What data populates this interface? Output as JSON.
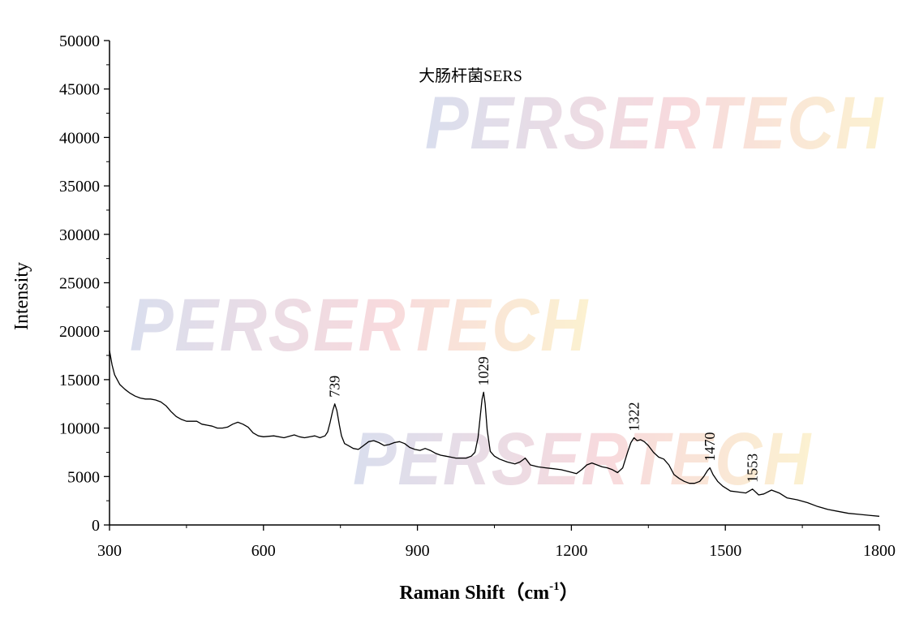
{
  "chart_data": {
    "type": "line",
    "title": "大肠杆菌SERS",
    "xlabel": "Raman Shift",
    "xlabel_unit_prefix": "（cm",
    "xlabel_unit_exp": "-1",
    "xlabel_unit_suffix": "）",
    "ylabel": "Intensity",
    "xlim": [
      300,
      1800
    ],
    "ylim": [
      0,
      50000
    ],
    "x_ticks": [
      300,
      600,
      900,
      1200,
      1500,
      1800
    ],
    "y_ticks": [
      0,
      5000,
      10000,
      15000,
      20000,
      25000,
      30000,
      35000,
      40000,
      45000,
      50000
    ],
    "grid": false,
    "line_color": "#000000",
    "series": [
      {
        "x": [
          300,
          305,
          310,
          315,
          320,
          330,
          340,
          350,
          360,
          370,
          380,
          390,
          400,
          410,
          420,
          430,
          440,
          450,
          460,
          470,
          480,
          490,
          500,
          510,
          520,
          530,
          540,
          550,
          560,
          570,
          580,
          590,
          600,
          620,
          640,
          660,
          670,
          680,
          700,
          710,
          720,
          725,
          730,
          735,
          739,
          743,
          748,
          752,
          758,
          765,
          775,
          785,
          795,
          805,
          815,
          825,
          835,
          845,
          855,
          865,
          875,
          885,
          895,
          905,
          915,
          925,
          935,
          945,
          955,
          965,
          975,
          985,
          995,
          1005,
          1012,
          1018,
          1023,
          1026,
          1029,
          1032,
          1036,
          1042,
          1050,
          1060,
          1075,
          1090,
          1100,
          1110,
          1120,
          1135,
          1150,
          1165,
          1180,
          1195,
          1210,
          1220,
          1230,
          1240,
          1250,
          1260,
          1270,
          1280,
          1290,
          1300,
          1310,
          1316,
          1322,
          1328,
          1335,
          1342,
          1350,
          1360,
          1370,
          1380,
          1390,
          1400,
          1410,
          1420,
          1430,
          1440,
          1450,
          1458,
          1465,
          1470,
          1476,
          1485,
          1495,
          1510,
          1525,
          1540,
          1553,
          1565,
          1575,
          1590,
          1605,
          1620,
          1640,
          1660,
          1680,
          1700,
          1720,
          1740,
          1760,
          1780,
          1800
        ],
        "y": [
          18000,
          16500,
          15500,
          15000,
          14500,
          14000,
          13600,
          13300,
          13100,
          13000,
          13000,
          12900,
          12700,
          12300,
          11700,
          11200,
          10900,
          10700,
          10700,
          10700,
          10400,
          10300,
          10200,
          10000,
          10000,
          10100,
          10400,
          10600,
          10400,
          10100,
          9500,
          9200,
          9100,
          9200,
          9000,
          9300,
          9100,
          9000,
          9200,
          9000,
          9200,
          9600,
          10600,
          11800,
          12500,
          11800,
          10300,
          9200,
          8400,
          8200,
          7900,
          7800,
          8200,
          8600,
          8700,
          8500,
          8200,
          8300,
          8500,
          8600,
          8400,
          8000,
          7800,
          7700,
          7900,
          7700,
          7400,
          7200,
          7100,
          7000,
          6900,
          6900,
          6900,
          7100,
          7500,
          9000,
          11500,
          13000,
          13700,
          12500,
          9800,
          7600,
          7100,
          6800,
          6500,
          6300,
          6500,
          6900,
          6200,
          6000,
          5900,
          5800,
          5700,
          5500,
          5300,
          5700,
          6200,
          6400,
          6200,
          6000,
          5900,
          5700,
          5400,
          5900,
          7600,
          8500,
          9000,
          8700,
          8800,
          8600,
          8200,
          7500,
          7000,
          6800,
          6200,
          5200,
          4800,
          4500,
          4300,
          4300,
          4500,
          5000,
          5600,
          5900,
          5200,
          4500,
          4000,
          3500,
          3400,
          3300,
          3700,
          3100,
          3200,
          3600,
          3300,
          2800,
          2600,
          2300,
          1900,
          1600,
          1400,
          1200,
          1100,
          1000,
          900
        ]
      }
    ],
    "annotations": [
      {
        "x": 739,
        "y": 12500,
        "label": "739"
      },
      {
        "x": 1029,
        "y": 13700,
        "label": "1029"
      },
      {
        "x": 1322,
        "y": 9000,
        "label": "1322"
      },
      {
        "x": 1470,
        "y": 5900,
        "label": "1470"
      },
      {
        "x": 1553,
        "y": 3700,
        "label": "1553"
      }
    ]
  },
  "watermark": {
    "text": "PERSERTECH",
    "colors": [
      "#5a6fb4",
      "#e05a6a",
      "#f2c430"
    ]
  }
}
